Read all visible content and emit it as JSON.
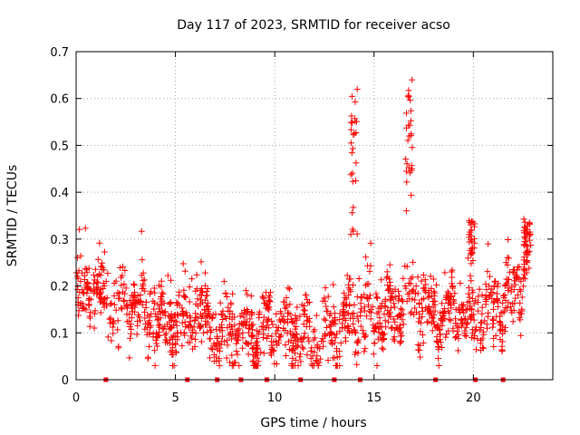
{
  "chart_data": {
    "type": "scatter",
    "title": "Day 117 of 2023, SRMTID for receiver acso",
    "xlabel": "GPS time / hours",
    "ylabel": "SRMTID / TECUs",
    "xlim": [
      0,
      24
    ],
    "ylim": [
      0,
      0.7
    ],
    "x_ticks": [
      0,
      5,
      10,
      15,
      20
    ],
    "x_tick_labels": [
      "0",
      "5",
      "10",
      "15",
      "20"
    ],
    "y_ticks": [
      0,
      0.1,
      0.2,
      0.3,
      0.4,
      0.5,
      0.6,
      0.7
    ],
    "y_tick_labels": [
      "0",
      "0.1",
      "0.2",
      "0.3",
      "0.4",
      "0.5",
      "0.6",
      "0.7"
    ],
    "grid": true,
    "marker": "+",
    "marker_color": "#ff0000",
    "envelope_note": "approximate typical SRMTID level per hour (dense scatter of ~1800 points)",
    "typical_level": {
      "x": [
        0,
        1,
        2,
        3,
        4,
        5,
        6,
        7,
        8,
        9,
        10,
        11,
        12,
        13,
        14,
        15,
        16,
        17,
        18,
        19,
        20,
        21,
        22,
        22.9
      ],
      "y": [
        0.17,
        0.19,
        0.15,
        0.16,
        0.13,
        0.12,
        0.14,
        0.11,
        0.11,
        0.09,
        0.12,
        0.1,
        0.08,
        0.1,
        0.14,
        0.13,
        0.15,
        0.18,
        0.13,
        0.14,
        0.13,
        0.15,
        0.17,
        0.25
      ]
    },
    "spikes": [
      {
        "x": 14.0,
        "y_min": 0.3,
        "y_max": 0.65
      },
      {
        "x": 16.75,
        "y_min": 0.35,
        "y_max": 0.67
      },
      {
        "x": 19.9,
        "y_min": 0.25,
        "y_max": 0.34
      },
      {
        "x": 22.7,
        "y_min": 0.28,
        "y_max": 0.35
      }
    ],
    "zero_markers_x": [
      1.5,
      5.6,
      7.1,
      8.3,
      9.6,
      11.3,
      13.0,
      14.3,
      18.1,
      20.1,
      21.5
    ]
  }
}
